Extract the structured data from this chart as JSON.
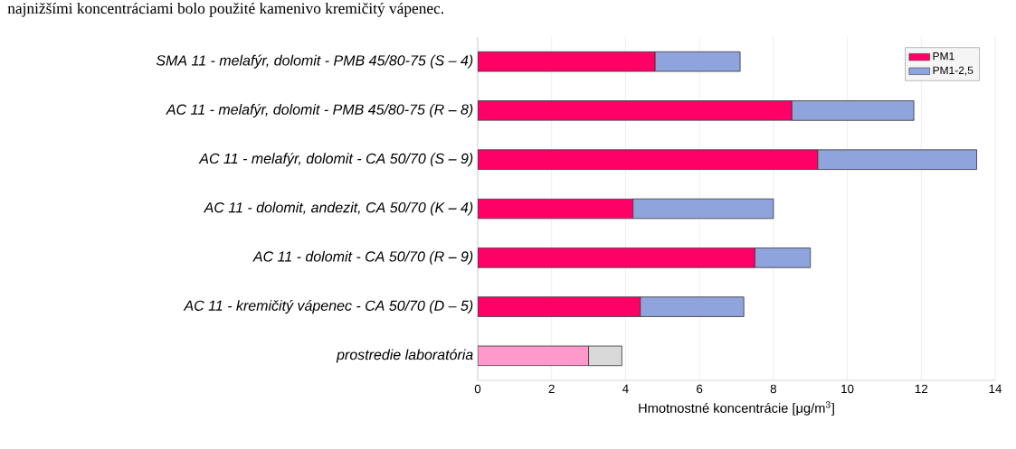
{
  "chart_data": {
    "type": "bar",
    "orientation": "horizontal",
    "stacked": true,
    "annotations": [
      "najnižšími koncentráciami bolo použité kamenivo kremičitý vápenec."
    ],
    "xlabel": "Hmotnostné koncentrácie [μg/m$^{3}$]",
    "categories": [
      "SMA 11 - melafýr, dolomit - PMB 45/80-75 (S – 4)",
      "AC 11 - melafýr, dolomit - PMB 45/80-75 (R – 8)",
      "AC 11 - melafýr, dolomit - CA 50/70 (S – 9)",
      "AC 11 - dolomit, andezit, CA 50/70 (K – 4)",
      "AC 11 - dolomit - CA 50/70 (R – 9)",
      "AC 11 - kremičitý vápenec - CA 50/70 (D – 5)",
      "prostredie laboratória"
    ],
    "series": [
      {
        "name": "PM1",
        "color": "#ff0066",
        "colors": [
          "#ff0066",
          "#ff0066",
          "#ff0066",
          "#ff0066",
          "#ff0066",
          "#ff0066",
          "#ff99cc"
        ],
        "values": [
          4.8,
          8.5,
          9.2,
          4.2,
          7.5,
          4.4,
          3.0
        ]
      },
      {
        "name": "PM1-2,5",
        "color": "#8fa3dc",
        "colors": [
          "#8fa3dc",
          "#8fa3dc",
          "#8fa3dc",
          "#8fa3dc",
          "#8fa3dc",
          "#8fa3dc",
          "#d9d9d9"
        ],
        "values": [
          2.3,
          3.3,
          4.3,
          3.8,
          1.5,
          2.8,
          0.9
        ]
      }
    ],
    "xlim": [
      0,
      14
    ],
    "xticks": [
      0,
      2,
      4,
      6,
      8,
      10,
      12,
      14
    ],
    "grid": "x",
    "legend": "top right"
  }
}
